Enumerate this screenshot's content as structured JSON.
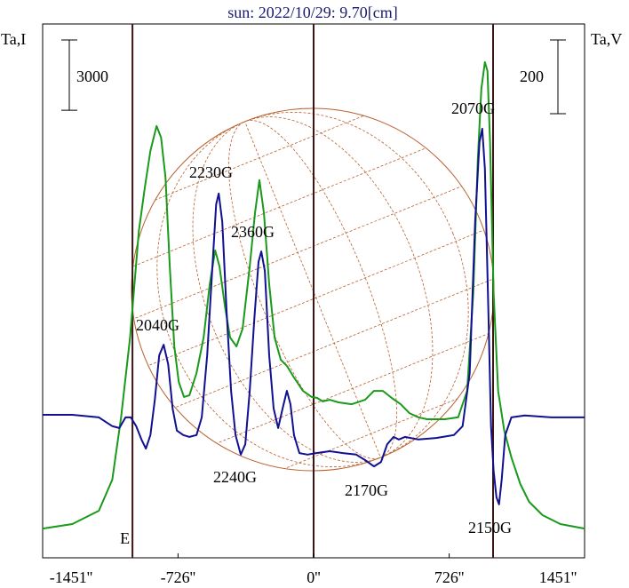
{
  "chart_data": {
    "type": "line",
    "title": "sun: 2022/10/29: 9.70[cm]",
    "ylabel": "Ta,I",
    "y2label": "Ta,V",
    "xlim": [
      -1451,
      1451
    ],
    "ylim": [
      0,
      22800
    ],
    "y2lim": [
      -388,
      1060
    ],
    "xticks": [
      {
        "value": -1451,
        "label": "-1451''"
      },
      {
        "value": -726,
        "label": "-726''"
      },
      {
        "value": 0,
        "label": "0''"
      },
      {
        "value": 726,
        "label": "726''"
      },
      {
        "value": 1451,
        "label": "1451''"
      }
    ],
    "vlines": [
      -970,
      0,
      961
    ],
    "vline_color": "#3a1515",
    "limb_label": "E",
    "scale_bars": [
      {
        "axis": "y",
        "value": 3000
      },
      {
        "axis": "y2",
        "value": 200
      }
    ],
    "annotations": [
      "2230G",
      "2360G",
      "2040G",
      "2240G",
      "2170G",
      "2070G",
      "2150G"
    ],
    "series": [
      {
        "color": "#1a9a1a",
        "axis": "y",
        "x": [
          -1451,
          -1292,
          -1150,
          -1078,
          -1031,
          -983,
          -936,
          -903,
          -874,
          -841,
          -817,
          -793,
          -770,
          -746,
          -722,
          -694,
          -665,
          -627,
          -589,
          -556,
          -527,
          -504,
          -475,
          -447,
          -413,
          -380,
          -342,
          -314,
          -290,
          -266,
          -238,
          -209,
          -176,
          -143,
          -105,
          -57,
          -10,
          19,
          48,
          86,
          133,
          204,
          276,
          323,
          371,
          418,
          466,
          513,
          561,
          608,
          703,
          774,
          822,
          855,
          879,
          898,
          917,
          931,
          945,
          964,
          988,
          1021,
          1059,
          1107,
          1154,
          1226,
          1321,
          1451
        ],
        "values": [
          1250,
          1440,
          2010,
          3340,
          6000,
          9410,
          13960,
          15860,
          17380,
          18440,
          17950,
          16240,
          12440,
          9030,
          7510,
          6870,
          6940,
          7890,
          9410,
          11690,
          13130,
          12440,
          10740,
          9410,
          9030,
          9790,
          12440,
          14720,
          16130,
          14720,
          11690,
          9410,
          8460,
          8200,
          7700,
          7130,
          6870,
          6830,
          6680,
          6750,
          6640,
          6560,
          6750,
          7130,
          7130,
          6830,
          6560,
          6180,
          6000,
          5920,
          5920,
          6000,
          7130,
          11310,
          17000,
          20030,
          21170,
          20790,
          17760,
          11310,
          7130,
          5430,
          4290,
          3150,
          2390,
          1820,
          1440,
          1250
        ]
      },
      {
        "color": "#101090",
        "axis": "y2",
        "x": [
          -1451,
          -1292,
          -1150,
          -1078,
          -1040,
          -1007,
          -979,
          -950,
          -922,
          -898,
          -874,
          -850,
          -827,
          -803,
          -779,
          -755,
          -732,
          -698,
          -665,
          -627,
          -599,
          -570,
          -542,
          -522,
          -508,
          -489,
          -466,
          -442,
          -418,
          -390,
          -366,
          -342,
          -318,
          -295,
          -280,
          -261,
          -238,
          -214,
          -190,
          -166,
          -143,
          -124,
          -105,
          -76,
          -33,
          14,
          86,
          157,
          228,
          276,
          323,
          361,
          394,
          428,
          456,
          489,
          561,
          656,
          751,
          798,
          836,
          865,
          888,
          903,
          917,
          936,
          950,
          964,
          979,
          993,
          1007,
          1026,
          1059,
          1131,
          1273,
          1451
        ],
        "values": [
          0,
          0,
          -7,
          -31,
          -36,
          -7,
          -7,
          -31,
          -67,
          -92,
          -55,
          41,
          161,
          190,
          137,
          17,
          -43,
          -55,
          -60,
          -55,
          -7,
          161,
          402,
          571,
          600,
          523,
          282,
          65,
          -55,
          -108,
          -80,
          65,
          258,
          415,
          443,
          390,
          161,
          17,
          -36,
          17,
          65,
          29,
          -55,
          -104,
          -108,
          -104,
          -99,
          -104,
          -108,
          -123,
          -140,
          -128,
          -80,
          -60,
          -67,
          -60,
          -67,
          -63,
          -55,
          -31,
          113,
          523,
          740,
          776,
          667,
          282,
          -31,
          -152,
          -224,
          -243,
          -176,
          -55,
          -7,
          -2,
          -7,
          -7
        ]
      }
    ]
  }
}
